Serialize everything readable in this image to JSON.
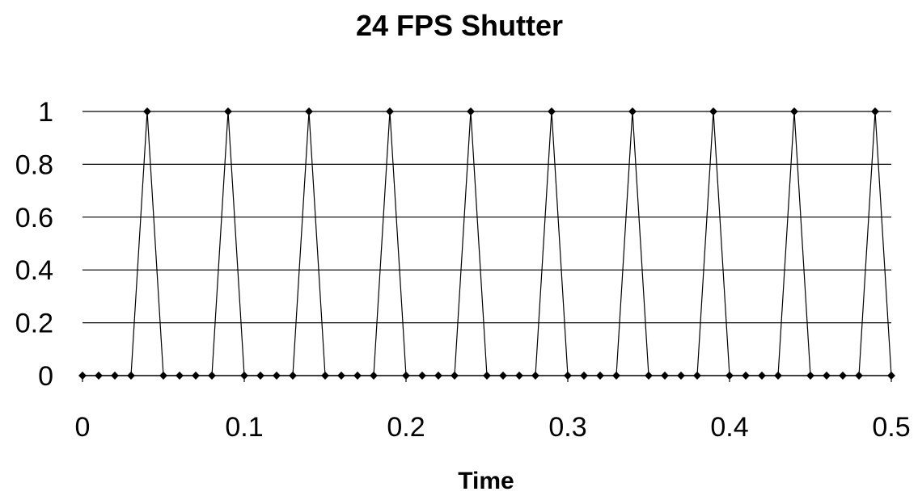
{
  "chart_data": {
    "type": "line",
    "title": "24 FPS Shutter",
    "xlabel": "Time",
    "ylabel": "",
    "xlim": [
      0,
      0.5
    ],
    "ylim": [
      0,
      1
    ],
    "xticks": [
      "0",
      "0.1",
      "0.2",
      "0.3",
      "0.4",
      "0.5"
    ],
    "yticks": [
      "0",
      "0.2",
      "0.4",
      "0.6",
      "0.8",
      "1"
    ],
    "grid": "horizontal",
    "legend": "none",
    "line_color": "#000000",
    "series": [
      {
        "x": [
          0,
          0.01,
          0.02,
          0.03,
          0.04,
          0.05,
          0.06,
          0.07,
          0.08,
          0.09,
          0.1,
          0.11,
          0.12,
          0.13,
          0.14,
          0.15,
          0.16,
          0.17,
          0.18,
          0.19,
          0.2,
          0.21,
          0.22,
          0.23,
          0.24,
          0.25,
          0.26,
          0.27,
          0.28,
          0.29,
          0.3,
          0.31,
          0.32,
          0.33,
          0.34,
          0.35,
          0.36,
          0.37,
          0.38,
          0.39,
          0.4,
          0.41,
          0.42,
          0.43,
          0.44,
          0.45,
          0.46,
          0.47,
          0.48,
          0.49,
          0.5
        ],
        "y": [
          0,
          0,
          0,
          0,
          1,
          0,
          0,
          0,
          0,
          1,
          0,
          0,
          0,
          0,
          1,
          0,
          0,
          0,
          0,
          1,
          0,
          0,
          0,
          0,
          1,
          0,
          0,
          0,
          0,
          1,
          0,
          0,
          0,
          0,
          1,
          0,
          0,
          0,
          0,
          1,
          0,
          0,
          0,
          0,
          1,
          0,
          0,
          0,
          0,
          1,
          0
        ]
      }
    ]
  }
}
